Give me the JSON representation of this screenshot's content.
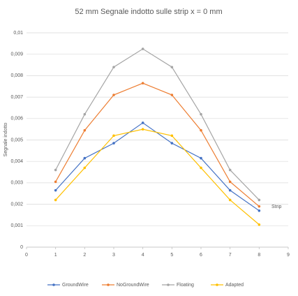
{
  "chart_data": {
    "type": "line",
    "title": "52 mm Segnale indotto sulle strip x = 0 mm",
    "x_label": "Strip",
    "y_label": "Segnale indotto",
    "x": [
      1,
      2,
      3,
      4,
      5,
      6,
      7,
      8
    ],
    "series": [
      {
        "name": "GroundWire",
        "color": "#4472c4",
        "values": [
          0.00265,
          0.00415,
          0.00485,
          0.0058,
          0.00485,
          0.00415,
          0.00265,
          0.0017
        ]
      },
      {
        "name": "NoGroundWire",
        "color": "#ed7d31",
        "values": [
          0.00305,
          0.00545,
          0.0071,
          0.00765,
          0.0071,
          0.00545,
          0.00305,
          0.0019
        ]
      },
      {
        "name": "Floating",
        "color": "#a5a5a5",
        "values": [
          0.0036,
          0.0062,
          0.0084,
          0.00925,
          0.0084,
          0.0062,
          0.0036,
          0.0022
        ]
      },
      {
        "name": "Adapted",
        "color": "#ffc000",
        "values": [
          0.0022,
          0.0037,
          0.0052,
          0.0055,
          0.0052,
          0.0037,
          0.0022,
          0.00105
        ]
      }
    ],
    "xlim": [
      0,
      9
    ],
    "xticks": [
      0,
      1,
      2,
      3,
      4,
      5,
      6,
      7,
      8,
      9
    ],
    "ylim": [
      0,
      0.01
    ],
    "yticks": [
      0,
      {
        "value": 0.001,
        "label": "0,001"
      },
      {
        "value": 0.002,
        "label": "0,002"
      },
      {
        "value": 0.003,
        "label": "0,003"
      },
      {
        "value": 0.004,
        "label": "0,004"
      },
      {
        "value": 0.005,
        "label": "0,005"
      },
      {
        "value": 0.006,
        "label": "0,006"
      },
      {
        "value": 0.007,
        "label": "0,007"
      },
      {
        "value": 0.008,
        "label": "0,008"
      },
      {
        "value": 0.009,
        "label": "0,009"
      },
      {
        "value": 0.01,
        "label": "0,01"
      }
    ],
    "grid": true,
    "legend": "bottom"
  }
}
